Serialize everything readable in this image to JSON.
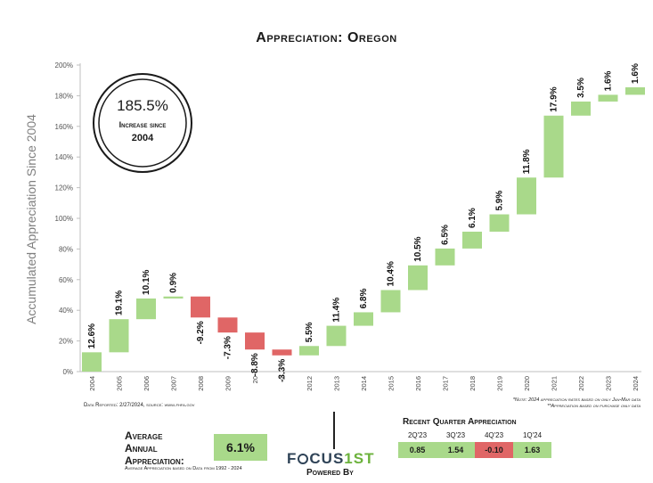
{
  "title": "Appreciation: Oregon",
  "badge": {
    "value": "185.5%",
    "line1": "Increase since",
    "line2": "2004"
  },
  "footer": {
    "source": "Data Reported: 2/27/2024, source: www.fhfa.gov",
    "note1": "*Note: 2024 appreciation rates based on only Jan-Mar data",
    "note2": "**Appreciation based on purchase only data"
  },
  "average": {
    "label1": "Average",
    "label2": "Annual",
    "label3": "Appreciation:",
    "value": "6.1%",
    "note": "Average Appreciation based on Data from 1992 - 2024"
  },
  "logo": {
    "part1": "F",
    "part2": "CUS",
    "part3": "1ST",
    "powered": "Powered By"
  },
  "recent": {
    "title": "Recent Quarter Appreciation",
    "quarters": [
      {
        "label": "2Q'23",
        "value": "0.85",
        "color": "#a9d98a"
      },
      {
        "label": "3Q'23",
        "value": "1.54",
        "color": "#a9d98a"
      },
      {
        "label": "4Q'23",
        "value": "-0.10",
        "color": "#e06666"
      },
      {
        "label": "1Q'24",
        "value": "1.63",
        "color": "#a9d98a"
      }
    ]
  },
  "colors": {
    "positive": "#a9d98a",
    "negative": "#e06666"
  },
  "chart_data": {
    "type": "bar",
    "subtype": "waterfall",
    "title": "Appreciation: Oregon",
    "ylabel": "Accumulated Appreciation Since 2004",
    "xlabel": "",
    "ylim": [
      0,
      200
    ],
    "yticks": [
      "0%",
      "20%",
      "40%",
      "60%",
      "80%",
      "100%",
      "120%",
      "140%",
      "160%",
      "180%",
      "200%"
    ],
    "categories": [
      "2004",
      "2005",
      "2006",
      "2007",
      "2008",
      "2009",
      "20",
      "2",
      "2012",
      "2013",
      "2014",
      "2015",
      "2016",
      "2017",
      "2018",
      "2019",
      "2020",
      "2021",
      "2022",
      "2023",
      "2024"
    ],
    "labels": [
      "12.6%",
      "19.1%",
      "10.1%",
      "0.9%",
      "-9.2%",
      "-7.3%",
      "-8.8%",
      "-3.3%",
      "5.5%",
      "11.4%",
      "6.8%",
      "10.4%",
      "10.5%",
      "6.5%",
      "6.1%",
      "5.9%",
      "11.8%",
      "17.9%",
      "3.5%",
      "1.6%",
      "1.6%"
    ],
    "bars": [
      {
        "start": 0,
        "end": 12.6
      },
      {
        "start": 12.6,
        "end": 34.2
      },
      {
        "start": 34.2,
        "end": 47.7
      },
      {
        "start": 47.7,
        "end": 49.0
      },
      {
        "start": 49.0,
        "end": 35.3
      },
      {
        "start": 35.3,
        "end": 25.5
      },
      {
        "start": 25.5,
        "end": 14.4
      },
      {
        "start": 14.4,
        "end": 10.6
      },
      {
        "start": 10.6,
        "end": 16.7
      },
      {
        "start": 16.7,
        "end": 29.9
      },
      {
        "start": 29.9,
        "end": 38.7
      },
      {
        "start": 38.7,
        "end": 53.2
      },
      {
        "start": 53.2,
        "end": 69.3
      },
      {
        "start": 69.3,
        "end": 80.3
      },
      {
        "start": 80.3,
        "end": 91.3
      },
      {
        "start": 91.3,
        "end": 102.6
      },
      {
        "start": 102.6,
        "end": 126.6
      },
      {
        "start": 126.6,
        "end": 167.0
      },
      {
        "start": 167.0,
        "end": 176.2
      },
      {
        "start": 176.2,
        "end": 180.6
      },
      {
        "start": 180.6,
        "end": 185.5
      }
    ],
    "grid": false,
    "legend": "none"
  }
}
